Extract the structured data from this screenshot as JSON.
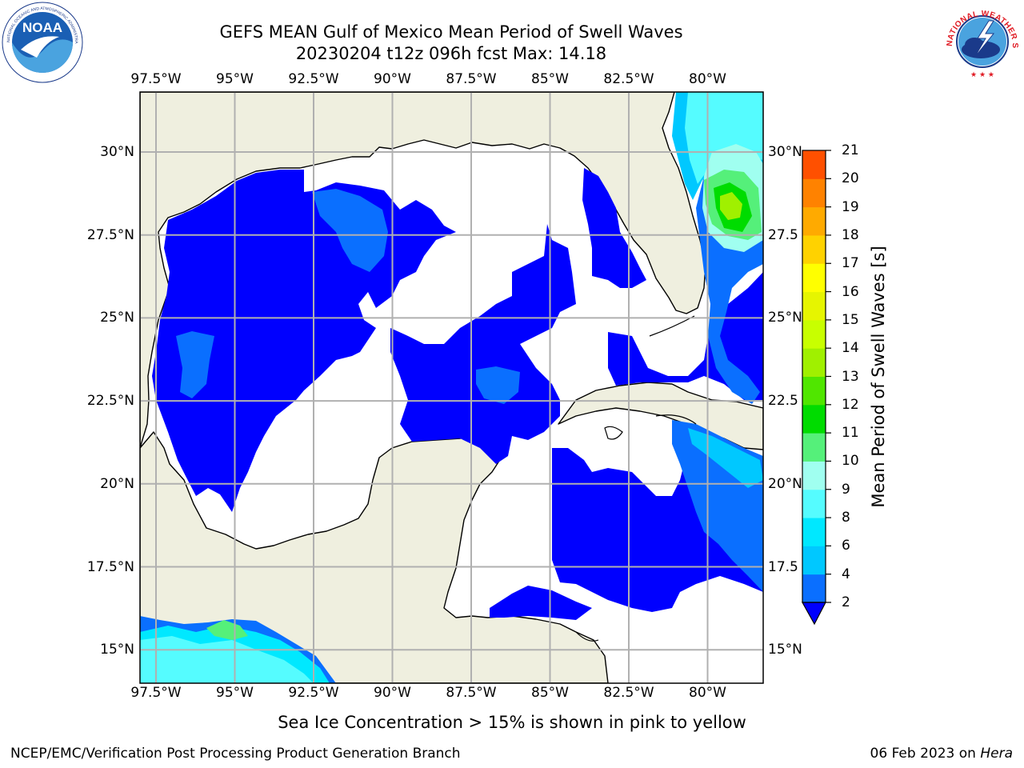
{
  "title_line1": "GEFS MEAN Gulf of Mexico Mean Period of Swell Waves",
  "title_line2": "20230204 t12z 096h fcst   Max: 14.18",
  "logos": {
    "noaa": {
      "text": "NOAA",
      "ring_text": "NATIONAL OCEANIC AND ATMOSPHERIC ADMINISTRATION · U.S. DEPARTMENT OF COMMERCE"
    },
    "nws": {
      "ring_text": "NATIONAL WEATHER SERVICE"
    }
  },
  "axes": {
    "lon_labels": [
      "97.5°W",
      "95°W",
      "92.5°W",
      "90°W",
      "87.5°W",
      "85°W",
      "82.5°W",
      "80°W"
    ],
    "lat_labels": [
      "30°N",
      "27.5°N",
      "25°N",
      "22.5°N",
      "20°N",
      "17.5°N",
      "15°N"
    ],
    "lat_labels_right": [
      "30°N",
      "27.5",
      "25°N",
      "22.5",
      "20°N",
      "17.5",
      "15°N"
    ]
  },
  "colorbar": {
    "label": "Mean Period of Swell Waves [s]",
    "ticks": [
      "2",
      "4",
      "6",
      "8",
      "9",
      "10",
      "11",
      "12",
      "13",
      "14",
      "15",
      "16",
      "17",
      "18",
      "19",
      "20",
      "21"
    ],
    "colors": [
      "#0a6fff",
      "#00c8ff",
      "#00e8ff",
      "#55fcff",
      "#a0fff0",
      "#55f07a",
      "#00dc00",
      "#50e600",
      "#a0f000",
      "#c8ff00",
      "#e6f500",
      "#ffff00",
      "#ffd200",
      "#ffaa00",
      "#ff8200",
      "#ff5000",
      "#ff2800",
      "#ff0000"
    ],
    "extend_color": "#0000ff"
  },
  "note": "Sea Ice Concentration > 15% is shown in pink to yellow",
  "footer_left": "NCEP/EMC/Verification Post Processing Product Generation Branch",
  "footer_right_date": "06 Feb 2023 on",
  "footer_right_host": "Hera"
}
